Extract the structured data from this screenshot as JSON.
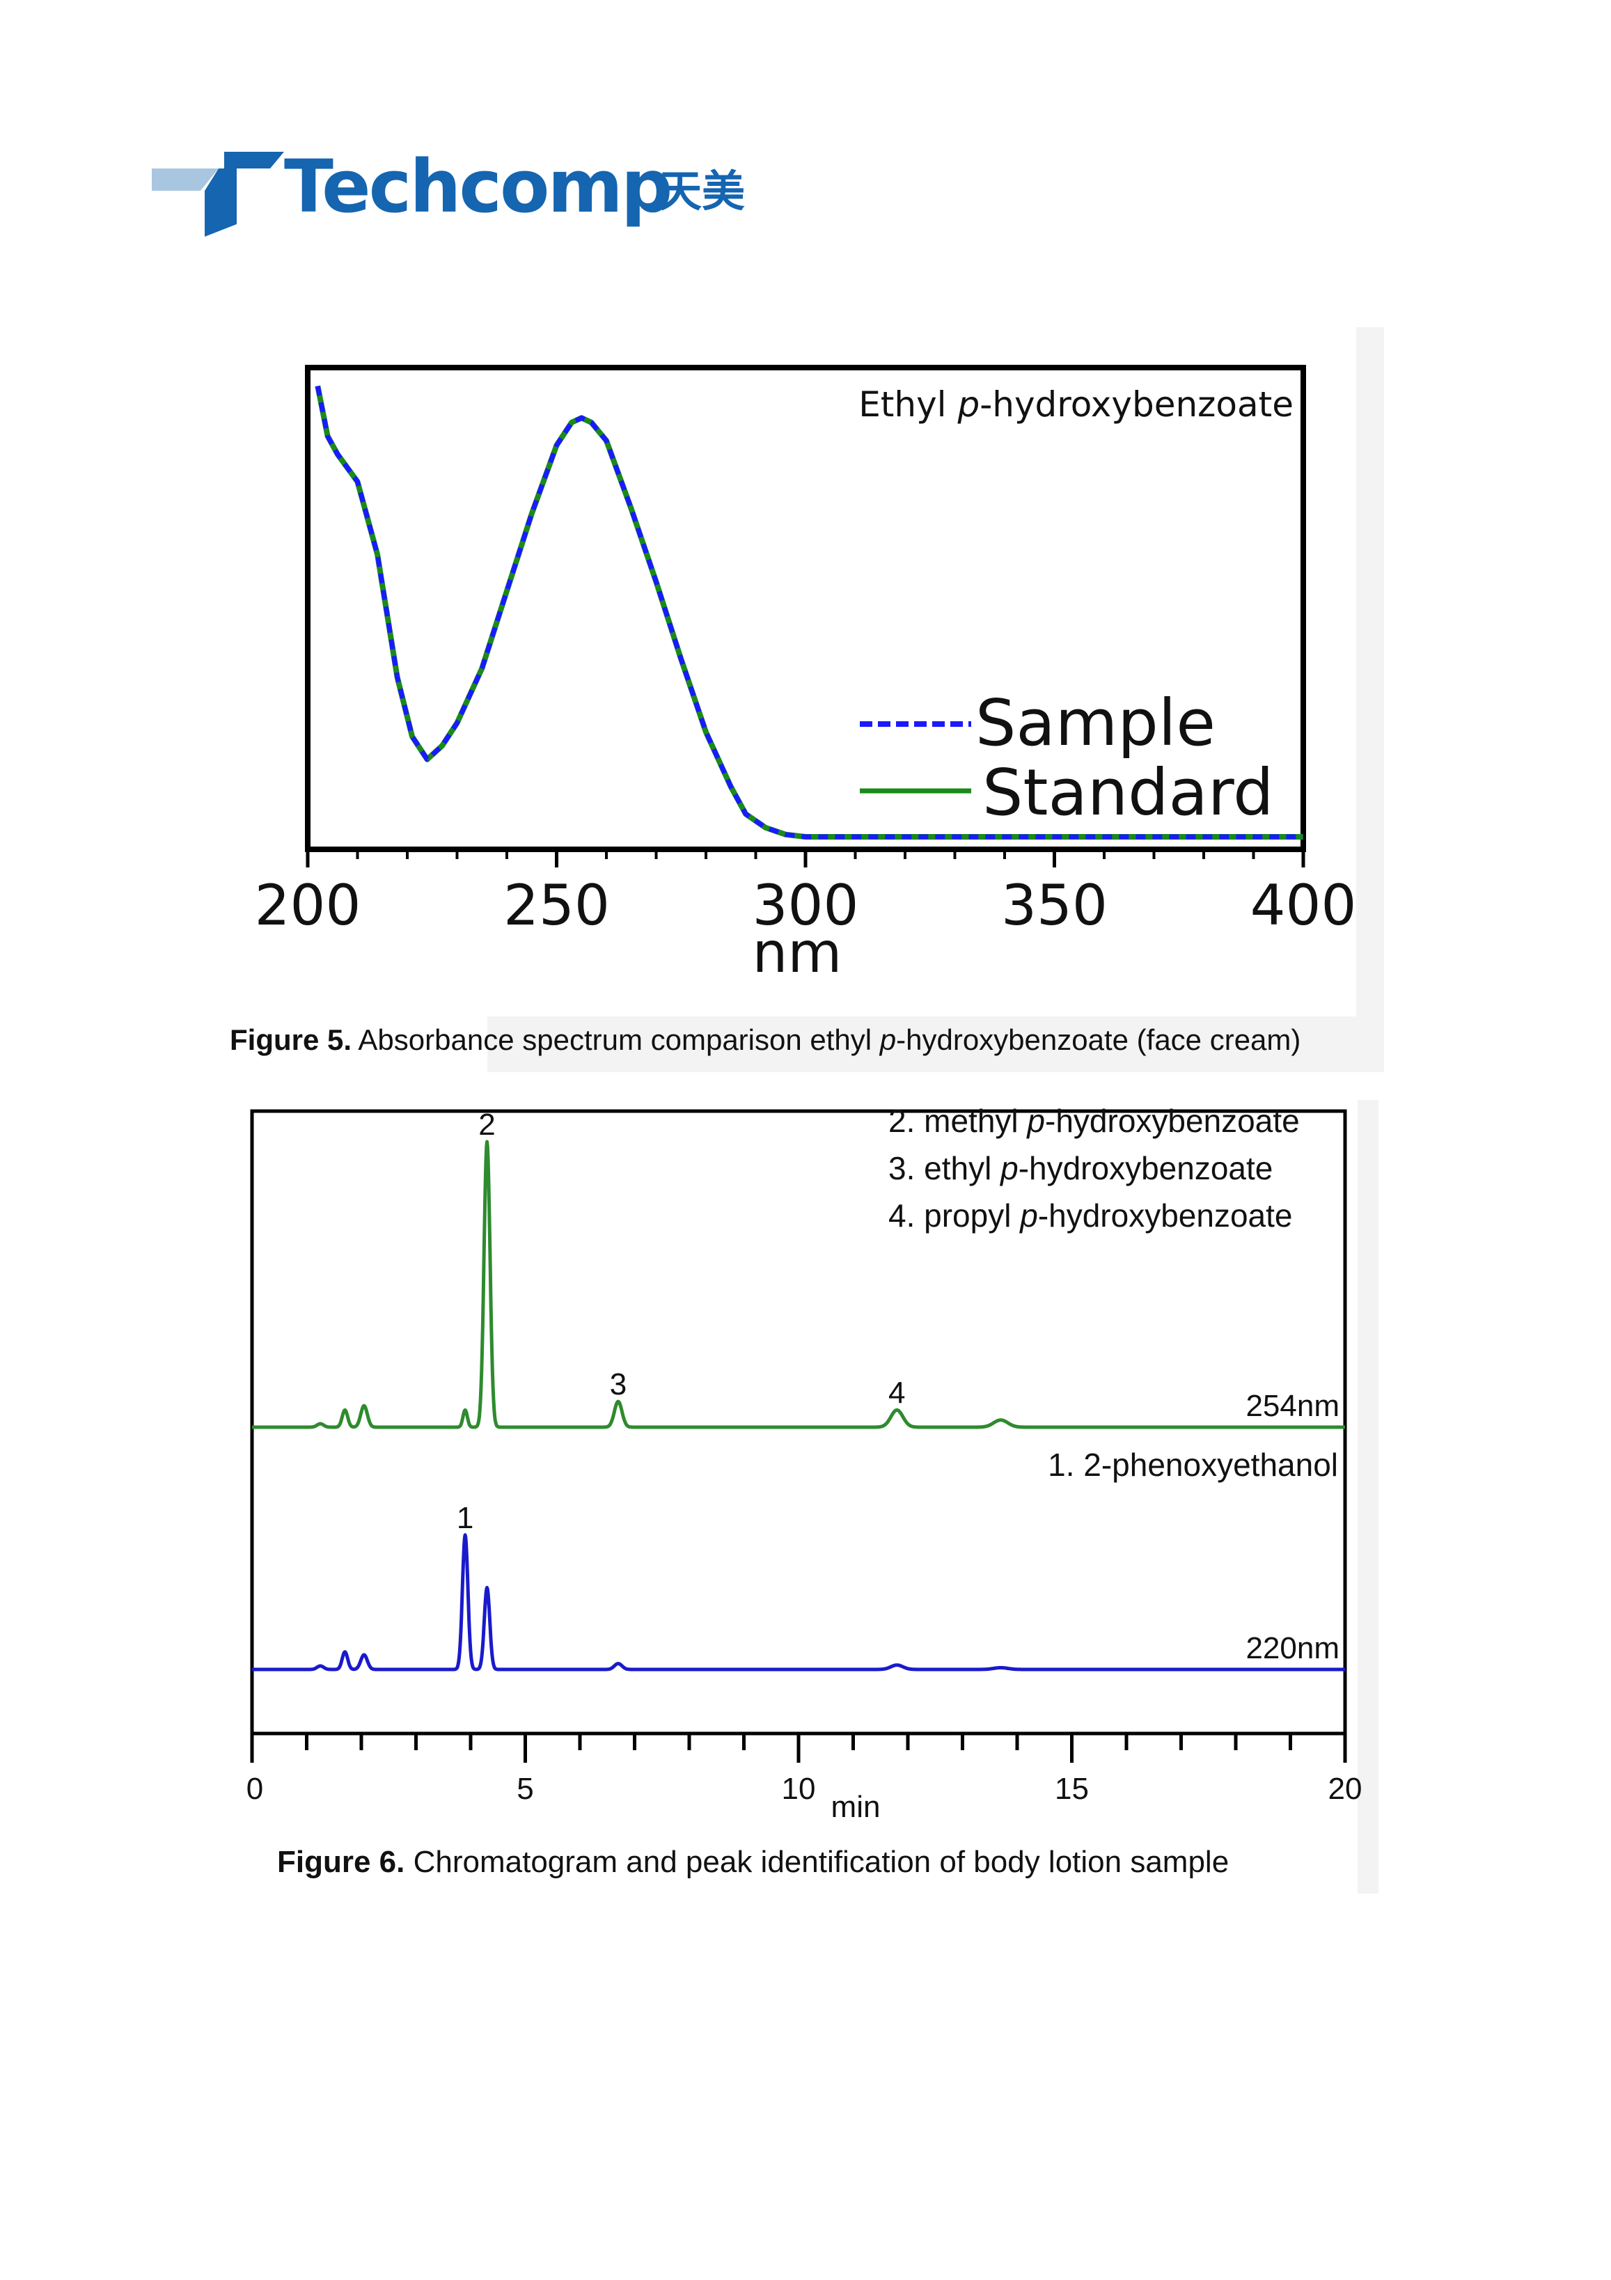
{
  "header": {
    "logo_text": "Techcomp",
    "logo_cjk": "天美"
  },
  "colors": {
    "brand": "#1565b0",
    "brand_light": "#a9c6e0",
    "sample": "#1a1aff",
    "standard": "#1a8a1a",
    "ch254": "#2e8b2e",
    "ch220": "#1a1acc"
  },
  "figure5": {
    "caption_label": "Figure 5.",
    "caption_pre": "Absorbance spectrum comparison ethyl ",
    "caption_italic": "p",
    "caption_post": "-hydroxybenzoate (face cream)",
    "chart_data": {
      "type": "line",
      "title_pre": "Ethyl ",
      "title_italic": "p",
      "title_post": "-hydroxybenzoate",
      "xlabel": "nm",
      "ylabel": "",
      "xlim": [
        200,
        400
      ],
      "ylim": [
        0,
        1
      ],
      "x_ticks": [
        200,
        250,
        300,
        350,
        400
      ],
      "x_tick_labels": [
        "200",
        "250",
        "300",
        "350",
        "400"
      ],
      "minor_tick_step": 10,
      "grid": false,
      "legend": "bottom-right",
      "series": [
        {
          "name": "Sample",
          "style": "dashed",
          "x": [
            202,
            204,
            206,
            210,
            214,
            218,
            221,
            224,
            227,
            230,
            235,
            240,
            245,
            250,
            253,
            255,
            257,
            260,
            265,
            270,
            275,
            280,
            285,
            288,
            292,
            296,
            300,
            320,
            350,
            400
          ],
          "y": [
            0.99,
            0.88,
            0.84,
            0.78,
            0.62,
            0.35,
            0.22,
            0.17,
            0.2,
            0.25,
            0.37,
            0.54,
            0.71,
            0.86,
            0.91,
            0.92,
            0.91,
            0.87,
            0.72,
            0.56,
            0.39,
            0.23,
            0.11,
            0.05,
            0.02,
            0.005,
            0.0,
            0.0,
            0.0,
            0.0
          ]
        },
        {
          "name": "Standard",
          "style": "solid",
          "x": [
            202,
            204,
            206,
            210,
            214,
            218,
            221,
            224,
            227,
            230,
            235,
            240,
            245,
            250,
            253,
            255,
            257,
            260,
            265,
            270,
            275,
            280,
            285,
            288,
            292,
            296,
            300,
            320,
            350,
            400
          ],
          "y": [
            0.99,
            0.88,
            0.84,
            0.78,
            0.62,
            0.35,
            0.22,
            0.17,
            0.2,
            0.25,
            0.37,
            0.54,
            0.71,
            0.86,
            0.91,
            0.92,
            0.91,
            0.87,
            0.72,
            0.56,
            0.39,
            0.23,
            0.11,
            0.05,
            0.02,
            0.005,
            0.0,
            0.0,
            0.0,
            0.0
          ]
        }
      ]
    }
  },
  "figure6": {
    "caption_label": "Figure 6.",
    "caption_text": "Chromatogram and peak identification of body lotion sample",
    "chart_data": {
      "type": "line",
      "xlabel": "min",
      "xlim": [
        0,
        20
      ],
      "x_ticks": [
        0,
        5,
        10,
        15,
        20
      ],
      "x_tick_labels": [
        "0",
        "5",
        "10",
        "15",
        "20"
      ],
      "minor_tick_step": 1,
      "grid": false,
      "peak_legend_top": [
        {
          "pre": "2. methyl ",
          "italic": "p",
          "post": "-hydroxybenzoate"
        },
        {
          "pre": "3. ethyl ",
          "italic": "p",
          "post": "-hydroxybenzoate"
        },
        {
          "pre": "4. propyl ",
          "italic": "p",
          "post": "-hydroxybenzoate"
        }
      ],
      "peak_legend_bottom": "1. 2-phenoxyethanol",
      "series": [
        {
          "name": "254nm",
          "peaks": [
            {
              "t": 1.25,
              "h": 0.012,
              "w": 0.06
            },
            {
              "t": 1.7,
              "h": 0.06,
              "w": 0.05
            },
            {
              "t": 2.05,
              "h": 0.075,
              "w": 0.06
            },
            {
              "t": 3.9,
              "h": 0.06,
              "w": 0.04
            },
            {
              "t": 4.3,
              "h": 1.0,
              "w": 0.055,
              "label": "2"
            },
            {
              "t": 6.7,
              "h": 0.09,
              "w": 0.07,
              "label": "3"
            },
            {
              "t": 11.8,
              "h": 0.06,
              "w": 0.11,
              "label": "4"
            },
            {
              "t": 13.7,
              "h": 0.025,
              "w": 0.13
            }
          ]
        },
        {
          "name": "220nm",
          "peaks": [
            {
              "t": 1.25,
              "h": 0.012,
              "w": 0.06
            },
            {
              "t": 1.7,
              "h": 0.06,
              "w": 0.05
            },
            {
              "t": 2.05,
              "h": 0.05,
              "w": 0.06
            },
            {
              "t": 3.9,
              "h": 0.46,
              "w": 0.05,
              "label": "1"
            },
            {
              "t": 4.3,
              "h": 0.28,
              "w": 0.05
            },
            {
              "t": 6.7,
              "h": 0.02,
              "w": 0.07
            },
            {
              "t": 11.8,
              "h": 0.015,
              "w": 0.11
            },
            {
              "t": 13.7,
              "h": 0.006,
              "w": 0.13
            }
          ]
        }
      ]
    }
  }
}
